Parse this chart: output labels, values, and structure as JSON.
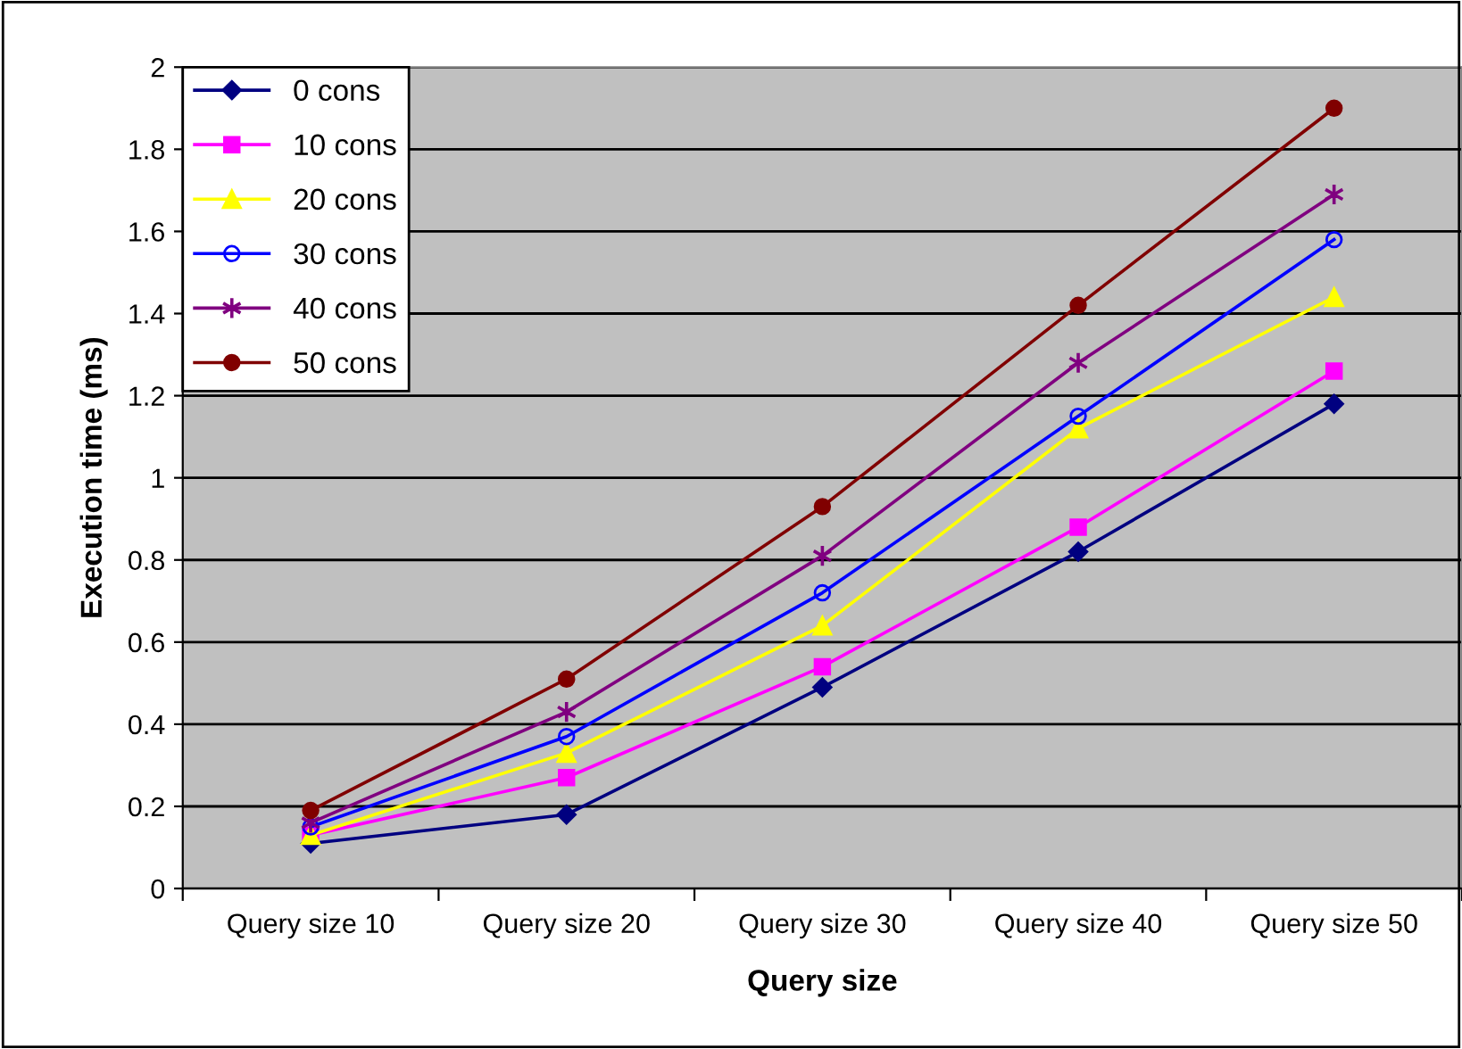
{
  "chart_data": {
    "type": "line",
    "xlabel": "Query size",
    "ylabel": "Execution time (ms)",
    "categories": [
      "Query size 10",
      "Query size 20",
      "Query size 30",
      "Query size 40",
      "Query size 50"
    ],
    "series": [
      {
        "name": "0 cons",
        "color": "#000080",
        "marker": "diamond",
        "values": [
          0.11,
          0.18,
          0.49,
          0.82,
          1.18
        ]
      },
      {
        "name": "10 cons",
        "color": "#ff00ff",
        "marker": "square",
        "values": [
          0.13,
          0.27,
          0.54,
          0.88,
          1.26
        ]
      },
      {
        "name": "20 cons",
        "color": "#ffff00",
        "marker": "triangle",
        "values": [
          0.13,
          0.33,
          0.64,
          1.12,
          1.44
        ]
      },
      {
        "name": "30 cons",
        "color": "#0000ff",
        "marker": "open_circle",
        "values": [
          0.15,
          0.37,
          0.72,
          1.15,
          1.58
        ]
      },
      {
        "name": "40 cons",
        "color": "#800080",
        "marker": "cross",
        "values": [
          0.16,
          0.43,
          0.81,
          1.28,
          1.69
        ]
      },
      {
        "name": "50 cons",
        "color": "#800000",
        "marker": "circle",
        "values": [
          0.19,
          0.51,
          0.93,
          1.42,
          1.9
        ]
      }
    ],
    "ylim": [
      0,
      2
    ],
    "yticks": [
      0,
      {
        "value": 0.2,
        "label": "0.2"
      },
      {
        "value": 0.4,
        "label": "0.4"
      },
      {
        "value": 0.6,
        "label": "0.6"
      },
      {
        "value": 0.8,
        "label": "0.8"
      },
      1,
      {
        "value": 1.2,
        "label": "1.2"
      },
      {
        "value": 1.4,
        "label": "1.4"
      },
      {
        "value": 1.6,
        "label": "1.6"
      },
      {
        "value": 1.8,
        "label": "1.8"
      },
      2
    ],
    "grid": "y",
    "legend": "top left",
    "line_style": "solid"
  }
}
